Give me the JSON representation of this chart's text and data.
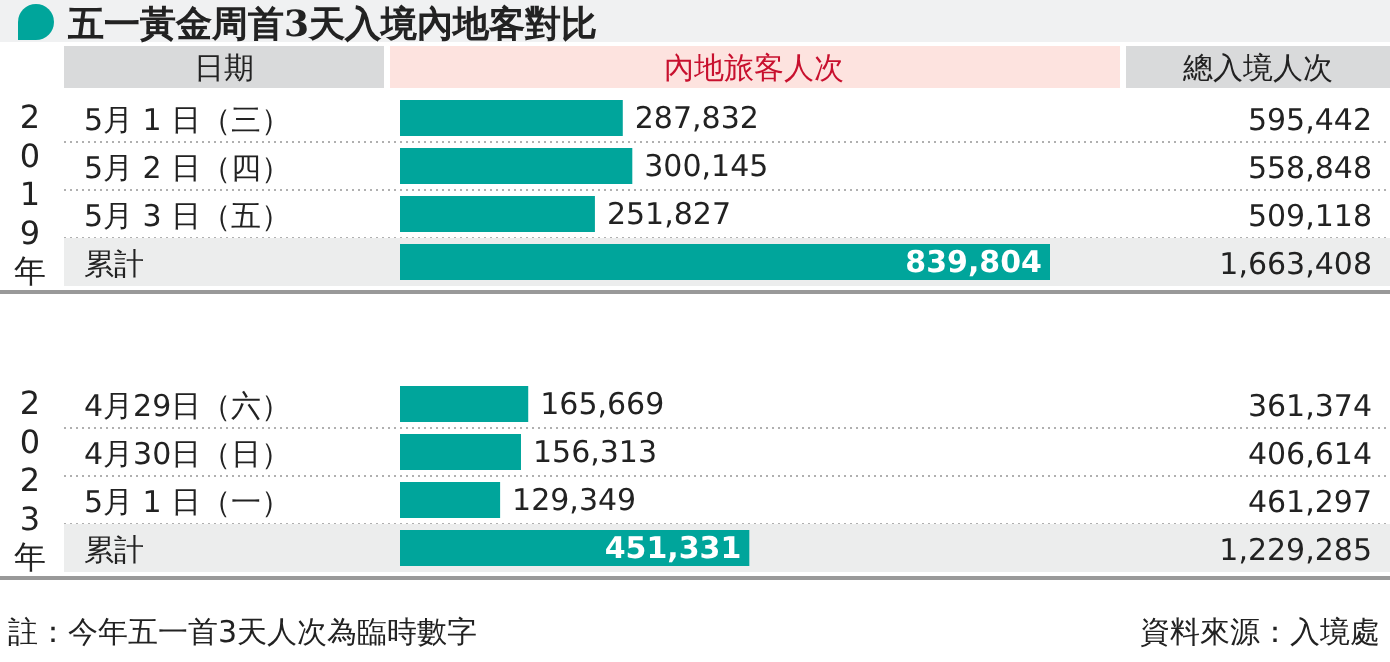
{
  "chart_data": [
    {
      "type": "bar",
      "orientation": "horizontal",
      "title": "五一黃金周首3天入境內地客對比",
      "subtitle": "2019年",
      "ylabel": "日期",
      "categories": [
        "5月 1 日（三）",
        "5月 2 日（四）",
        "5月 3 日（五）",
        "累計"
      ],
      "series": [
        {
          "name": "內地旅客人次",
          "color": "#00a59b",
          "values": [
            287832,
            300145,
            251827,
            839804
          ],
          "value_labels": [
            "287,832",
            "300,145",
            "251,827",
            "839,804"
          ]
        }
      ],
      "annotations": [
        "總入境人次",
        "595,442",
        "558,848",
        "509,118",
        "1,663,408"
      ]
    },
    {
      "type": "bar",
      "orientation": "horizontal",
      "subtitle": "2023年",
      "categories": [
        "4月29日（六）",
        "4月30日（日）",
        "5月 1 日（一）",
        "累計"
      ],
      "series": [
        {
          "color": "#00a59b",
          "values": [
            165669,
            156313,
            129349,
            451331
          ],
          "value_labels": [
            "165,669",
            "156,313",
            "129,349",
            "451,331"
          ]
        }
      ],
      "annotations": [
        "361,374",
        "406,614",
        "461,297",
        "1,229,285",
        "註：今年五一首3天人次為臨時數字",
        "資料來源：入境處"
      ]
    }
  ]
}
